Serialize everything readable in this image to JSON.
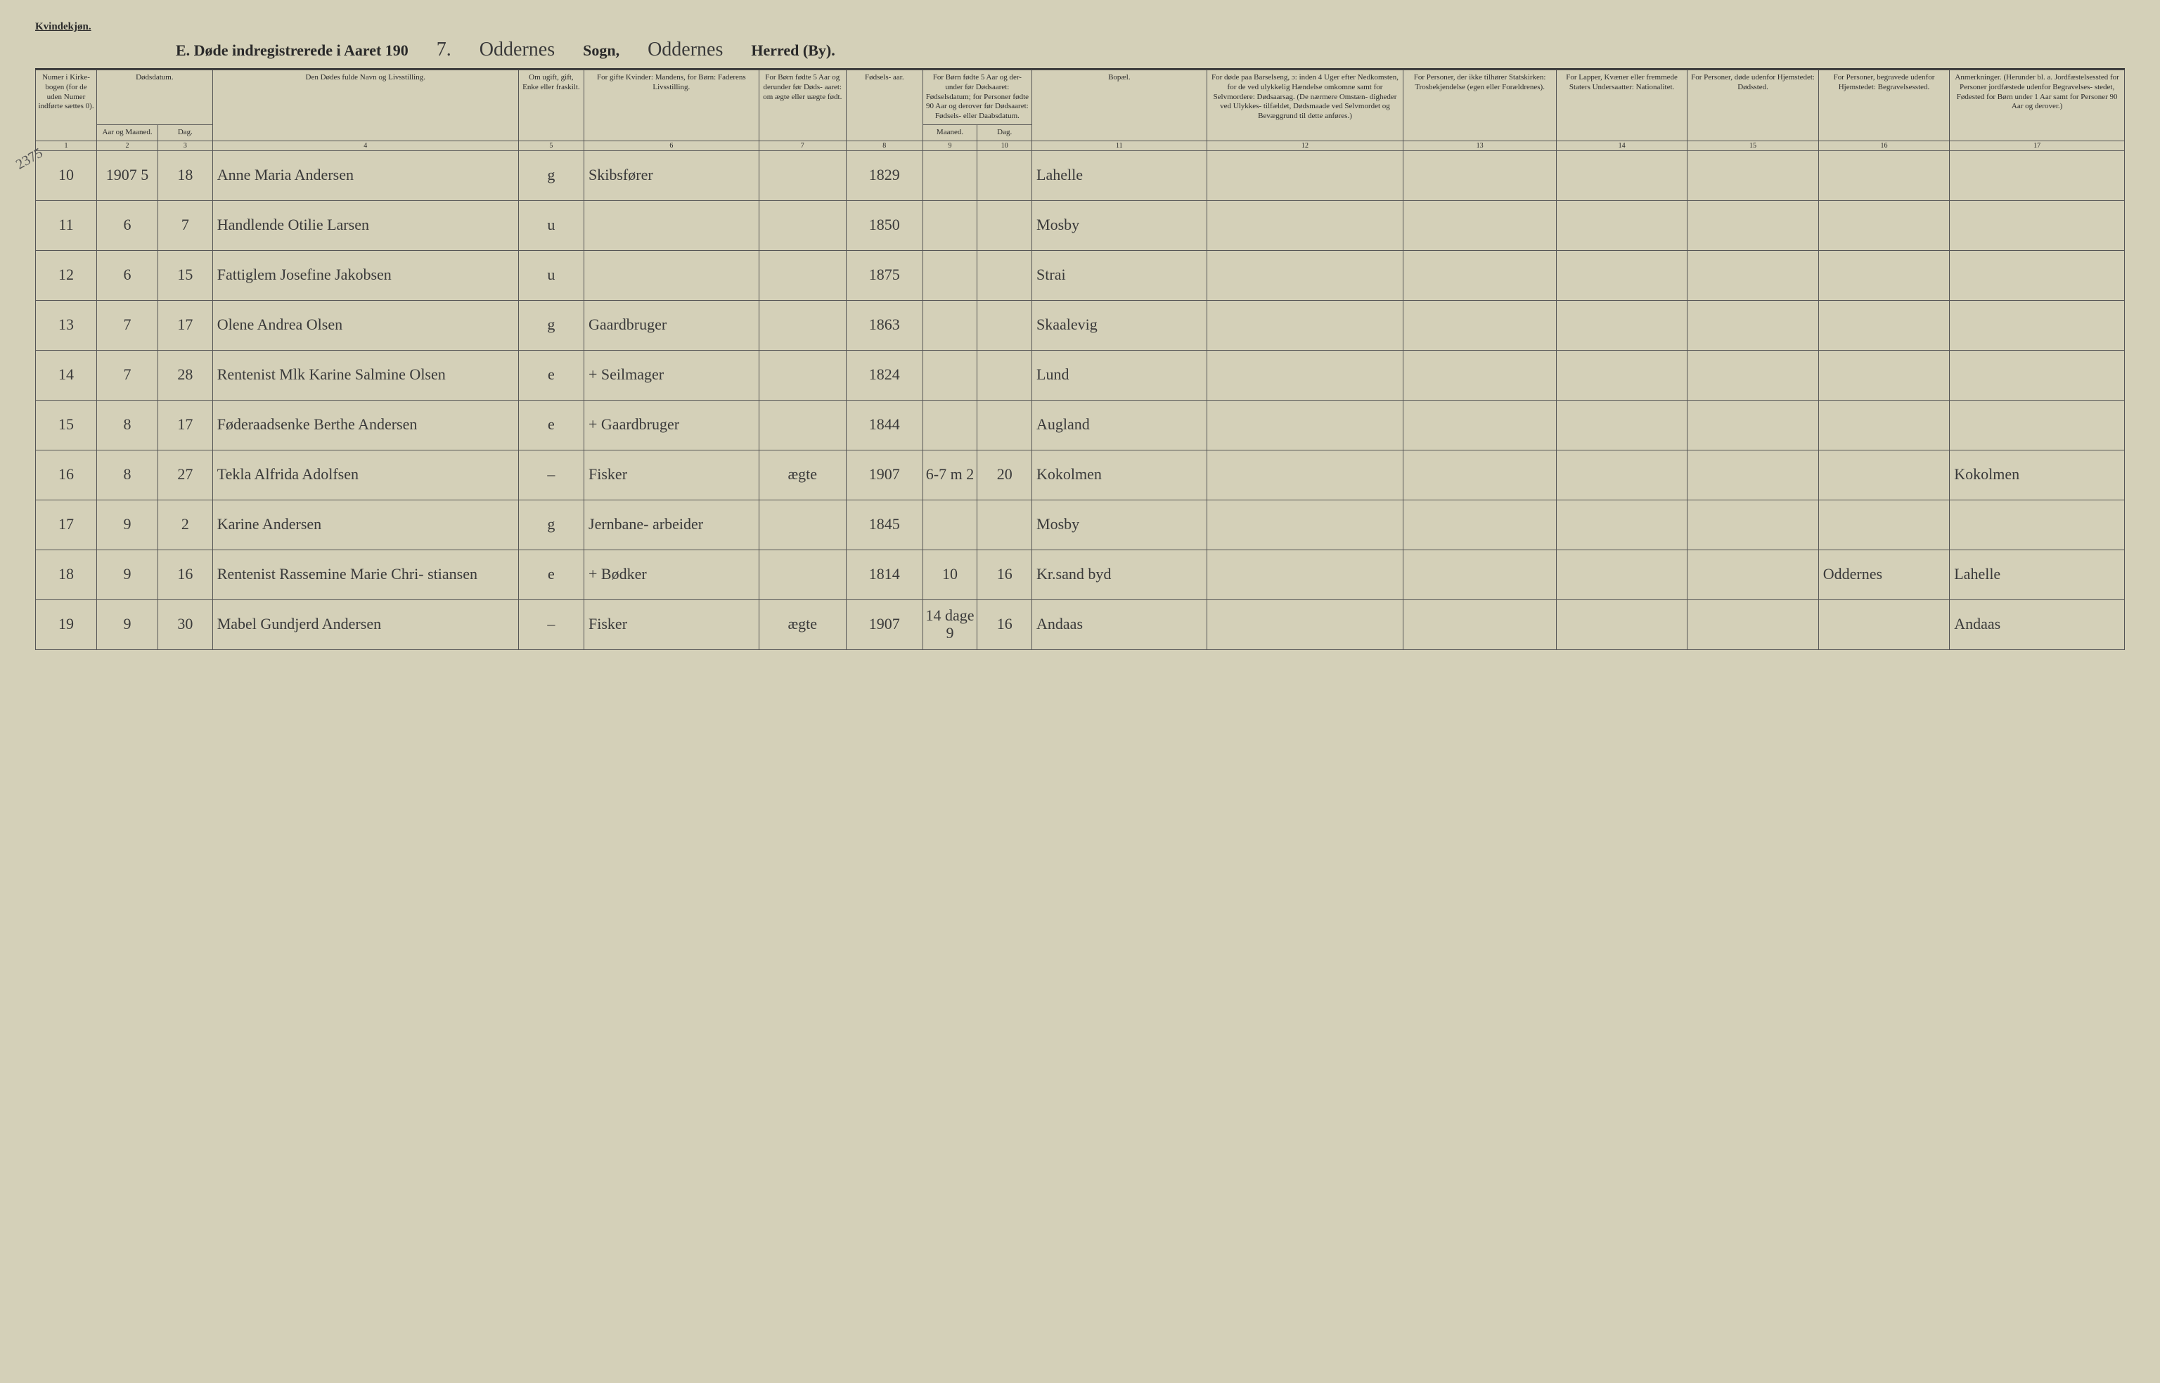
{
  "header": {
    "gender_label": "Kvindekjøn.",
    "title_prefix": "E.  Døde indregistrerede i Aaret 190",
    "year_suffix": "7.",
    "sogn_hw": "Oddernes",
    "sogn_label": "Sogn,",
    "herred_hw": "Oddernes",
    "herred_label": "Herred (By).",
    "margin_note": "2375"
  },
  "columns": {
    "c1": "Numer i Kirke- bogen (for de uden Numer indførte sættes 0).",
    "c2_top": "Dødsdatum.",
    "c2a": "Aar og Maaned.",
    "c2b": "Dag.",
    "c4": "Den Dødes fulde Navn og Livsstilling.",
    "c5": "Om ugift, gift, Enke eller fraskilt.",
    "c6": "For gifte Kvinder: Mandens, for Børn: Faderens Livsstilling.",
    "c7": "For Børn fødte 5 Aar og derunder før Døds- aaret: om ægte eller uægte født.",
    "c8": "Fødsels- aar.",
    "c9_top": "For Børn fødte 5 Aar og der- under før Dødsaaret: Fødselsdatum; for Personer fødte 90 Aar og derover før Dødsaaret: Fødsels- eller Daabsdatum.",
    "c9a": "Maaned.",
    "c9b": "Dag.",
    "c11": "Bopæl.",
    "c12": "For døde paa Barselseng, ɔ: inden 4 Uger efter Nedkomsten, for de ved ulykkelig Hændelse omkomne samt for Selvmordere: Dødsaarsag. (De nærmere Omstæn- digheder ved Ulykkes- tilfældet, Dødsmaade ved Selvmordet og Bevæggrund til dette anføres.)",
    "c13": "For Personer, der ikke tilhører Statskirken: Trosbekjendelse (egen eller Forældrenes).",
    "c14": "For Lapper, Kvæner eller fremmede Staters Undersaatter: Nationalitet.",
    "c15": "For Personer, døde udenfor Hjemstedet: Dødssted.",
    "c16": "For Personer, begravede udenfor Hjemstedet: Begravelsessted.",
    "c17": "Anmerkninger. (Herunder bl. a. Jordfæstelsessted for Personer jordfæstede udenfor Begravelses- stedet, Fødested for Børn under 1 Aar samt for Personer 90 Aar og derover.)"
  },
  "colnums": {
    "n1": "1",
    "n2": "2",
    "n3": "3",
    "n4": "4",
    "n5": "5",
    "n6": "6",
    "n7": "7",
    "n8": "8",
    "n9": "9",
    "n10": "10",
    "n11": "11",
    "n12": "12",
    "n13": "13",
    "n14": "14",
    "n15": "15",
    "n16": "16",
    "n17": "17"
  },
  "rows": [
    {
      "num": "10",
      "ym": "1907 5",
      "day": "18",
      "name": "Anne Maria Andersen",
      "civil": "g",
      "occup": "Skibsfører",
      "child5": "",
      "byear": "1829",
      "bm": "",
      "bd": "",
      "resid": "Lahelle",
      "c16": "",
      "notes": ""
    },
    {
      "num": "11",
      "ym": "6",
      "day": "7",
      "name": "Handlende Otilie Larsen",
      "civil": "u",
      "occup": "",
      "child5": "",
      "byear": "1850",
      "bm": "",
      "bd": "",
      "resid": "Mosby",
      "c16": "",
      "notes": ""
    },
    {
      "num": "12",
      "ym": "6",
      "day": "15",
      "name": "Fattiglem Josefine Jakobsen",
      "civil": "u",
      "occup": "",
      "child5": "",
      "byear": "1875",
      "bm": "",
      "bd": "",
      "resid": "Strai",
      "c16": "",
      "notes": ""
    },
    {
      "num": "13",
      "ym": "7",
      "day": "17",
      "name": "Olene Andrea Olsen",
      "civil": "g",
      "occup": "Gaardbruger",
      "child5": "",
      "byear": "1863",
      "bm": "",
      "bd": "",
      "resid": "Skaalevig",
      "c16": "",
      "notes": ""
    },
    {
      "num": "14",
      "ym": "7",
      "day": "28",
      "name": "Rentenist Mlk Karine Salmine Olsen",
      "civil": "e",
      "occup": "+ Seilmager",
      "child5": "",
      "byear": "1824",
      "bm": "",
      "bd": "",
      "resid": "Lund",
      "c16": "",
      "notes": ""
    },
    {
      "num": "15",
      "ym": "8",
      "day": "17",
      "name": "Føderaadsenke Berthe Andersen",
      "civil": "e",
      "occup": "+ Gaardbruger",
      "child5": "",
      "byear": "1844",
      "bm": "",
      "bd": "",
      "resid": "Augland",
      "c16": "",
      "notes": ""
    },
    {
      "num": "16",
      "ym": "8",
      "day": "27",
      "name": "Tekla Alfrida Adolfsen",
      "civil": "–",
      "occup": "Fisker",
      "child5": "ægte",
      "byear": "1907",
      "bm": "6-7 m 2",
      "bd": "20",
      "resid": "Kokolmen",
      "c16": "",
      "notes": "Kokolmen"
    },
    {
      "num": "17",
      "ym": "9",
      "day": "2",
      "name": "Karine Andersen",
      "civil": "g",
      "occup": "Jernbane- arbeider",
      "child5": "",
      "byear": "1845",
      "bm": "",
      "bd": "",
      "resid": "Mosby",
      "c16": "",
      "notes": ""
    },
    {
      "num": "18",
      "ym": "9",
      "day": "16",
      "name": "Rentenist Rassemine Marie Chri- stiansen",
      "civil": "e",
      "occup": "+ Bødker",
      "child5": "",
      "byear": "1814",
      "bm": "10",
      "bd": "16",
      "resid": "Kr.sand byd",
      "c16": "Oddernes",
      "notes": "Lahelle"
    },
    {
      "num": "19",
      "ym": "9",
      "day": "30",
      "name": "Mabel Gundjerd Andersen",
      "civil": "–",
      "occup": "Fisker",
      "child5": "ægte",
      "byear": "1907",
      "bm": "14 dage 9",
      "bd": "16",
      "resid": "Andaas",
      "c16": "",
      "notes": "Andaas"
    }
  ]
}
